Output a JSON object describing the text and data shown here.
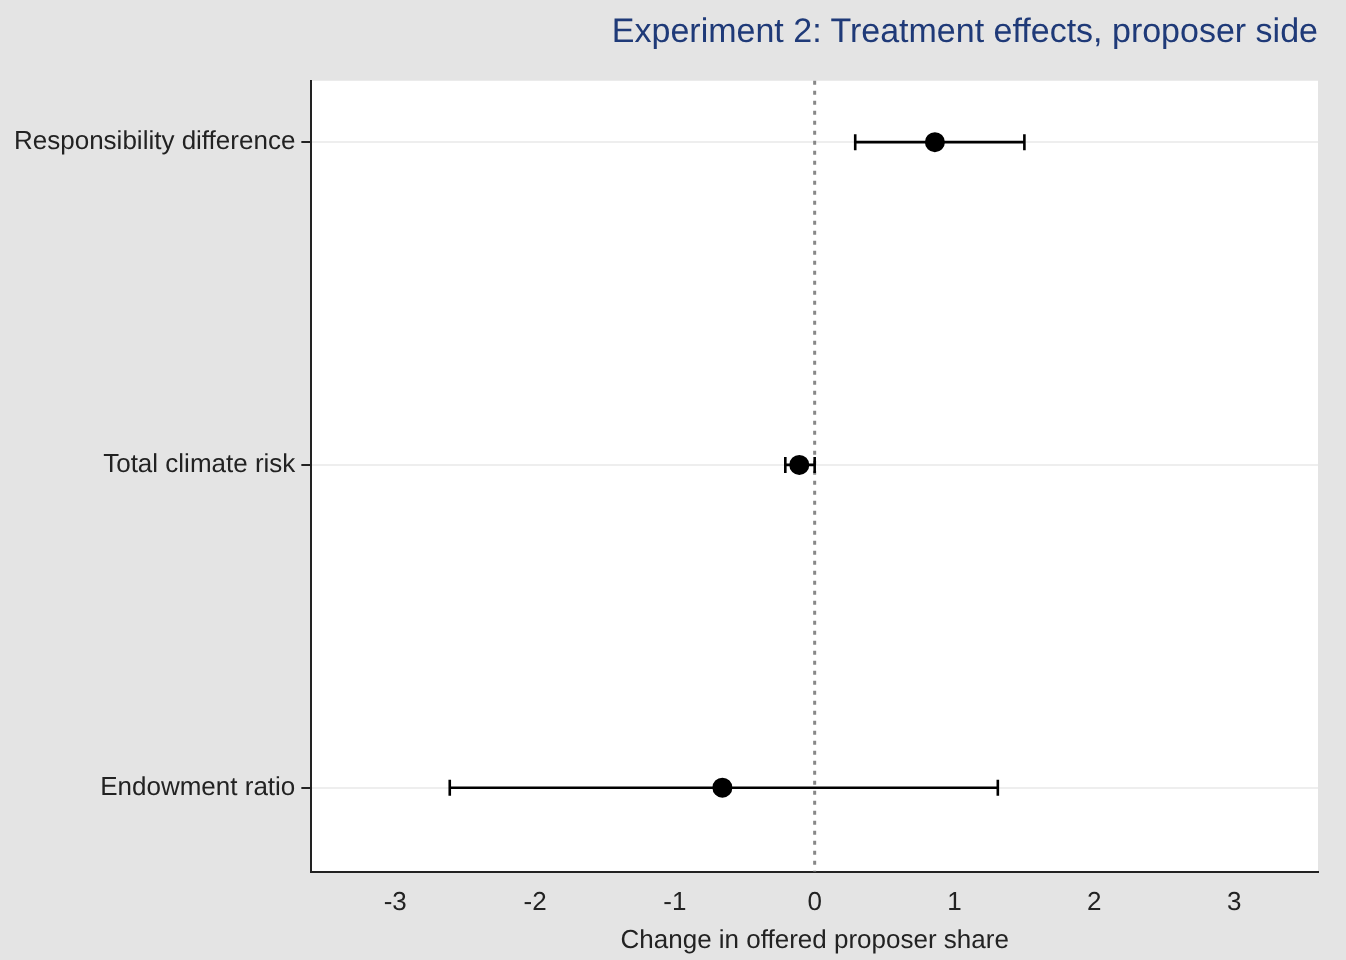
{
  "chart_data": {
    "type": "scatter",
    "orientation": "horizontal",
    "title": "Experiment 2: Treatment effects, proposer side",
    "xlabel": "Change in offered proposer share",
    "categories": [
      "Responsibility difference",
      "Total climate risk",
      "Endowment ratio"
    ],
    "series": [
      {
        "color": "#000000",
        "values": [
          0.86,
          -0.11,
          -0.66
        ],
        "errors": [
          [
            0.29,
            1.5
          ],
          [
            -0.21,
            0.0
          ],
          [
            -2.61,
            1.31
          ]
        ]
      }
    ],
    "xlim": [
      -3.6,
      3.6
    ],
    "xticks": [
      -3,
      -2,
      -1,
      0,
      1,
      2,
      3
    ],
    "grid": "y",
    "legend": false,
    "marker": "circle",
    "ref_lines": [
      {
        "axis": "x",
        "value": 0,
        "line_style": "dotted",
        "color": "#888888"
      }
    ]
  }
}
